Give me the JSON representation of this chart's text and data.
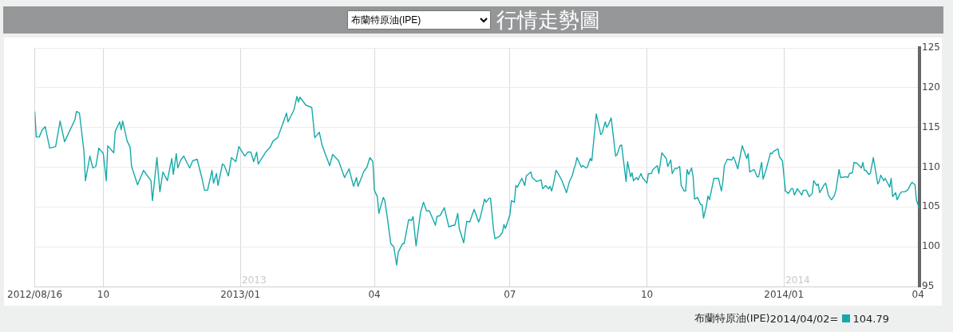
{
  "chart_data": {
    "type": "line",
    "title": "行情走勢圖",
    "xlim": [
      "2012-08-16",
      "2014-04-02"
    ],
    "xticks": [
      {
        "value": "2012-08-16",
        "label": "2012/08/16"
      },
      {
        "value": "2012-10-01",
        "label": "10"
      },
      {
        "value": "2013-01-01",
        "label": "2013/01"
      },
      {
        "value": "2013-04-01",
        "label": "04"
      },
      {
        "value": "2013-07-01",
        "label": "07"
      },
      {
        "value": "2013-10-01",
        "label": "10"
      },
      {
        "value": "2014-01-01",
        "label": "2014/01"
      },
      {
        "value": "2014-04-01",
        "label": "04"
      }
    ],
    "ylim": [
      95,
      125
    ],
    "yticks": [
      95,
      100,
      105,
      110,
      115,
      120,
      125
    ],
    "grid": true,
    "legend": "bottom right",
    "subtitle": "布蘭特原油(IPE)",
    "annotations": [
      "2013",
      "2014",
      "2014/04/02=",
      "104.79"
    ],
    "series": [
      {
        "name": "布蘭特原油(IPE)",
        "color": "#17a9a9",
        "x": [
          "2012-08-16",
          "2012-08-17",
          "2012-08-19",
          "2012-08-21",
          "2012-08-23",
          "2012-08-26",
          "2012-08-30",
          "2012-09-02",
          "2012-09-05",
          "2012-09-12",
          "2012-09-13",
          "2012-09-15",
          "2012-09-18",
          "2012-09-19",
          "2012-09-22",
          "2012-09-24",
          "2012-09-26",
          "2012-09-28",
          "2012-10-01",
          "2012-10-03",
          "2012-10-04",
          "2012-10-08",
          "2012-10-09",
          "2012-10-12",
          "2012-10-13",
          "2012-10-14",
          "2012-10-17",
          "2012-10-19",
          "2012-10-20",
          "2012-10-24",
          "2012-10-28",
          "2012-11-02",
          "2012-11-03",
          "2012-11-06",
          "2012-11-08",
          "2012-11-10",
          "2012-11-13",
          "2012-11-16",
          "2012-11-17",
          "2012-11-19",
          "2012-11-20",
          "2012-11-22",
          "2012-11-24",
          "2012-11-28",
          "2012-11-30",
          "2012-12-03",
          "2012-12-06",
          "2012-12-08",
          "2012-12-10",
          "2012-12-13",
          "2012-12-14",
          "2012-12-16",
          "2012-12-17",
          "2012-12-20",
          "2012-12-21",
          "2012-12-24",
          "2012-12-26",
          "2012-12-29",
          "2012-12-31",
          "2013-01-04",
          "2013-01-06",
          "2013-01-08",
          "2013-01-10",
          "2013-01-12",
          "2013-01-13",
          "2013-01-18",
          "2013-01-21",
          "2013-01-23",
          "2013-01-26",
          "2013-01-29",
          "2013-02-01",
          "2013-02-02",
          "2013-02-06",
          "2013-02-08",
          "2013-02-09",
          "2013-02-10",
          "2013-02-14",
          "2013-02-18",
          "2013-02-20",
          "2013-02-23",
          "2013-02-25",
          "2013-03-02",
          "2013-03-04",
          "2013-03-08",
          "2013-03-12",
          "2013-03-15",
          "2013-03-18",
          "2013-03-20",
          "2013-03-21",
          "2013-03-25",
          "2013-03-27",
          "2013-03-29",
          "2013-03-31",
          "2013-04-01",
          "2013-04-03",
          "2013-04-04",
          "2013-04-07",
          "2013-04-08",
          "2013-04-10",
          "2013-04-12",
          "2013-04-14",
          "2013-04-16",
          "2013-04-17",
          "2013-04-20",
          "2013-04-21",
          "2013-04-24",
          "2013-04-26",
          "2013-04-27",
          "2013-04-29",
          "2013-05-02",
          "2013-05-04",
          "2013-05-06",
          "2013-05-08",
          "2013-05-12",
          "2013-05-13",
          "2013-05-15",
          "2013-05-18",
          "2013-05-21",
          "2013-05-24",
          "2013-05-25",
          "2013-05-27",
          "2013-05-28",
          "2013-05-31",
          "2013-06-02",
          "2013-06-04",
          "2013-06-07",
          "2013-06-10",
          "2013-06-11",
          "2013-06-14",
          "2013-06-15",
          "2013-06-17",
          "2013-06-18",
          "2013-06-20",
          "2013-06-21",
          "2013-06-24",
          "2013-06-26",
          "2013-06-27",
          "2013-06-28",
          "2013-07-01",
          "2013-07-02",
          "2013-07-04",
          "2013-07-05",
          "2013-07-06",
          "2013-07-09",
          "2013-07-11",
          "2013-07-12",
          "2013-07-15",
          "2013-07-16",
          "2013-07-19",
          "2013-07-22",
          "2013-07-23",
          "2013-07-25",
          "2013-07-27",
          "2013-07-28",
          "2013-07-29",
          "2013-07-30",
          "2013-08-01",
          "2013-08-03",
          "2013-08-05",
          "2013-08-08",
          "2013-08-10",
          "2013-08-12",
          "2013-08-13",
          "2013-08-14",
          "2013-08-15",
          "2013-08-18",
          "2013-08-19",
          "2013-08-21",
          "2013-08-22",
          "2013-08-24",
          "2013-08-25",
          "2013-08-28",
          "2013-08-31",
          "2013-09-01",
          "2013-09-03",
          "2013-09-04",
          "2013-09-05",
          "2013-09-07",
          "2013-09-10",
          "2013-09-11",
          "2013-09-13",
          "2013-09-14",
          "2013-09-17",
          "2013-09-18",
          "2013-09-20",
          "2013-09-21",
          "2013-09-22",
          "2013-09-24",
          "2013-09-25",
          "2013-09-27",
          "2013-09-28",
          "2013-10-01",
          "2013-10-02",
          "2013-10-04",
          "2013-10-05",
          "2013-10-08",
          "2013-10-09",
          "2013-10-11",
          "2013-10-14",
          "2013-10-15",
          "2013-10-17",
          "2013-10-18",
          "2013-10-20",
          "2013-10-21",
          "2013-10-23",
          "2013-10-24",
          "2013-10-26",
          "2013-10-27",
          "2013-10-28",
          "2013-10-29",
          "2013-10-31",
          "2013-11-01",
          "2013-11-02",
          "2013-11-04",
          "2013-11-06",
          "2013-11-07",
          "2013-11-08",
          "2013-11-10",
          "2013-11-11",
          "2013-11-12",
          "2013-11-15",
          "2013-11-18",
          "2013-11-20",
          "2013-11-21",
          "2013-11-22",
          "2013-11-24",
          "2013-11-27",
          "2013-11-28",
          "2013-11-29",
          "2013-12-01",
          "2013-12-04",
          "2013-12-07",
          "2013-12-08",
          "2013-12-09",
          "2013-12-12",
          "2013-12-14",
          "2013-12-15",
          "2013-12-17",
          "2013-12-18",
          "2013-12-20",
          "2013-12-21",
          "2013-12-23",
          "2013-12-24",
          "2013-12-25",
          "2013-12-28",
          "2013-12-29",
          "2013-12-31",
          "2014-01-02",
          "2014-01-04",
          "2014-01-06",
          "2014-01-07",
          "2014-01-08",
          "2014-01-10",
          "2014-01-13",
          "2014-01-14",
          "2014-01-16",
          "2014-01-18",
          "2014-01-20",
          "2014-01-21",
          "2014-01-23",
          "2014-01-24",
          "2014-01-25",
          "2014-01-28",
          "2014-01-29",
          "2014-01-31",
          "2014-02-02",
          "2014-02-04",
          "2014-02-05",
          "2014-02-07",
          "2014-02-08",
          "2014-02-12",
          "2014-02-13",
          "2014-02-14",
          "2014-02-16",
          "2014-02-17",
          "2014-02-19",
          "2014-02-22",
          "2014-02-23",
          "2014-02-24",
          "2014-02-25",
          "2014-02-27",
          "2014-02-28",
          "2014-03-02",
          "2014-03-05",
          "2014-03-06",
          "2014-03-07",
          "2014-03-09",
          "2014-03-10",
          "2014-03-13",
          "2014-03-14",
          "2014-03-15",
          "2014-03-17",
          "2014-03-18",
          "2014-03-20",
          "2014-03-21",
          "2014-03-23",
          "2014-03-25",
          "2014-03-27",
          "2014-03-28",
          "2014-03-30",
          "2014-03-31",
          "2014-04-02"
        ],
        "values": [
          117.0,
          113.8,
          113.8,
          114.7,
          115.1,
          112.4,
          112.6,
          115.8,
          113.2,
          116.0,
          117.0,
          116.8,
          112.0,
          108.3,
          111.4,
          109.9,
          110.1,
          112.4,
          111.7,
          108.3,
          112.7,
          111.8,
          114.5,
          115.7,
          114.7,
          115.8,
          113.3,
          112.5,
          110.1,
          107.8,
          109.6,
          108.3,
          105.8,
          111.2,
          106.9,
          109.4,
          108.3,
          111.1,
          109.1,
          111.7,
          109.9,
          110.9,
          111.4,
          109.9,
          110.8,
          111.0,
          108.8,
          107.1,
          107.1,
          109.6,
          108.0,
          109.2,
          107.7,
          110.4,
          110.3,
          108.9,
          111.2,
          110.7,
          112.6,
          111.4,
          111.9,
          111.9,
          110.7,
          111.9,
          110.4,
          111.9,
          112.5,
          113.3,
          113.7,
          115.2,
          116.8,
          115.7,
          117.2,
          118.9,
          118.2,
          118.8,
          117.8,
          117.5,
          113.7,
          114.4,
          112.7,
          110.2,
          111.6,
          110.8,
          108.7,
          109.8,
          107.6,
          108.7,
          107.6,
          109.5,
          110.0,
          111.2,
          110.7,
          107.1,
          106.3,
          104.2,
          106.2,
          105.8,
          103.3,
          100.4,
          100.0,
          97.7,
          99.3,
          100.4,
          100.4,
          103.4,
          103.3,
          103.8,
          100.1,
          104.3,
          105.6,
          104.5,
          104.5,
          102.7,
          103.8,
          103.9,
          104.9,
          102.5,
          102.7,
          102.7,
          104.2,
          102.3,
          100.5,
          103.2,
          103.1,
          104.7,
          103.1,
          103.6,
          106.0,
          105.6,
          106.1,
          106.1,
          102.2,
          101.0,
          101.3,
          101.8,
          102.8,
          102.3,
          104.0,
          105.8,
          105.6,
          107.7,
          107.5,
          108.6,
          107.7,
          108.9,
          109.4,
          108.7,
          108.2,
          108.4,
          107.3,
          107.7,
          107.3,
          107.6,
          107.0,
          107.7,
          109.6,
          109.0,
          108.3,
          106.8,
          108.2,
          109.0,
          109.8,
          110.3,
          111.2,
          110.0,
          110.2,
          109.9,
          110.0,
          111.1,
          110.8,
          116.7,
          114.1,
          114.3,
          115.7,
          115.0,
          115.3,
          116.2,
          111.4,
          111.6,
          112.7,
          112.8,
          108.2,
          110.7,
          108.8,
          109.3,
          108.3,
          108.7,
          108.4,
          109.2,
          108.7,
          108.0,
          109.2,
          109.2,
          109.7,
          110.2,
          109.2,
          111.8,
          111.1,
          110.1,
          110.9,
          109.2,
          109.9,
          109.8,
          110.1,
          107.7,
          107.0,
          107.0,
          109.7,
          109.1,
          109.9,
          108.8,
          106.0,
          106.2,
          105.3,
          105.3,
          103.6,
          105.2,
          106.4,
          105.9,
          108.6,
          108.6,
          107.0,
          108.2,
          110.2,
          111.0,
          110.9,
          111.3,
          110.9,
          109.8,
          112.7,
          111.1,
          111.7,
          109.4,
          109.7,
          108.8,
          108.8,
          110.6,
          108.5,
          109.7,
          110.4,
          111.8,
          111.7,
          112.0,
          112.3,
          111.3,
          110.8,
          107.0,
          106.7,
          107.3,
          107.3,
          106.5,
          107.3,
          106.5,
          107.1,
          107.1,
          106.3,
          106.7,
          108.3,
          107.7,
          107.9,
          106.8,
          107.8,
          108.0,
          106.4,
          105.9,
          106.5,
          107.2,
          109.7,
          108.7,
          108.8,
          108.7,
          109.2,
          109.3,
          110.6,
          110.5,
          109.9,
          110.6,
          109.6,
          109.6,
          109.1,
          109.2,
          111.2,
          107.9,
          108.2,
          109.0,
          108.3,
          108.6,
          107.5,
          108.6,
          106.3,
          106.8,
          105.9,
          106.7,
          106.9,
          106.9,
          107.1,
          107.8,
          108.1,
          107.8,
          105.8,
          104.79
        ]
      }
    ]
  }
}
